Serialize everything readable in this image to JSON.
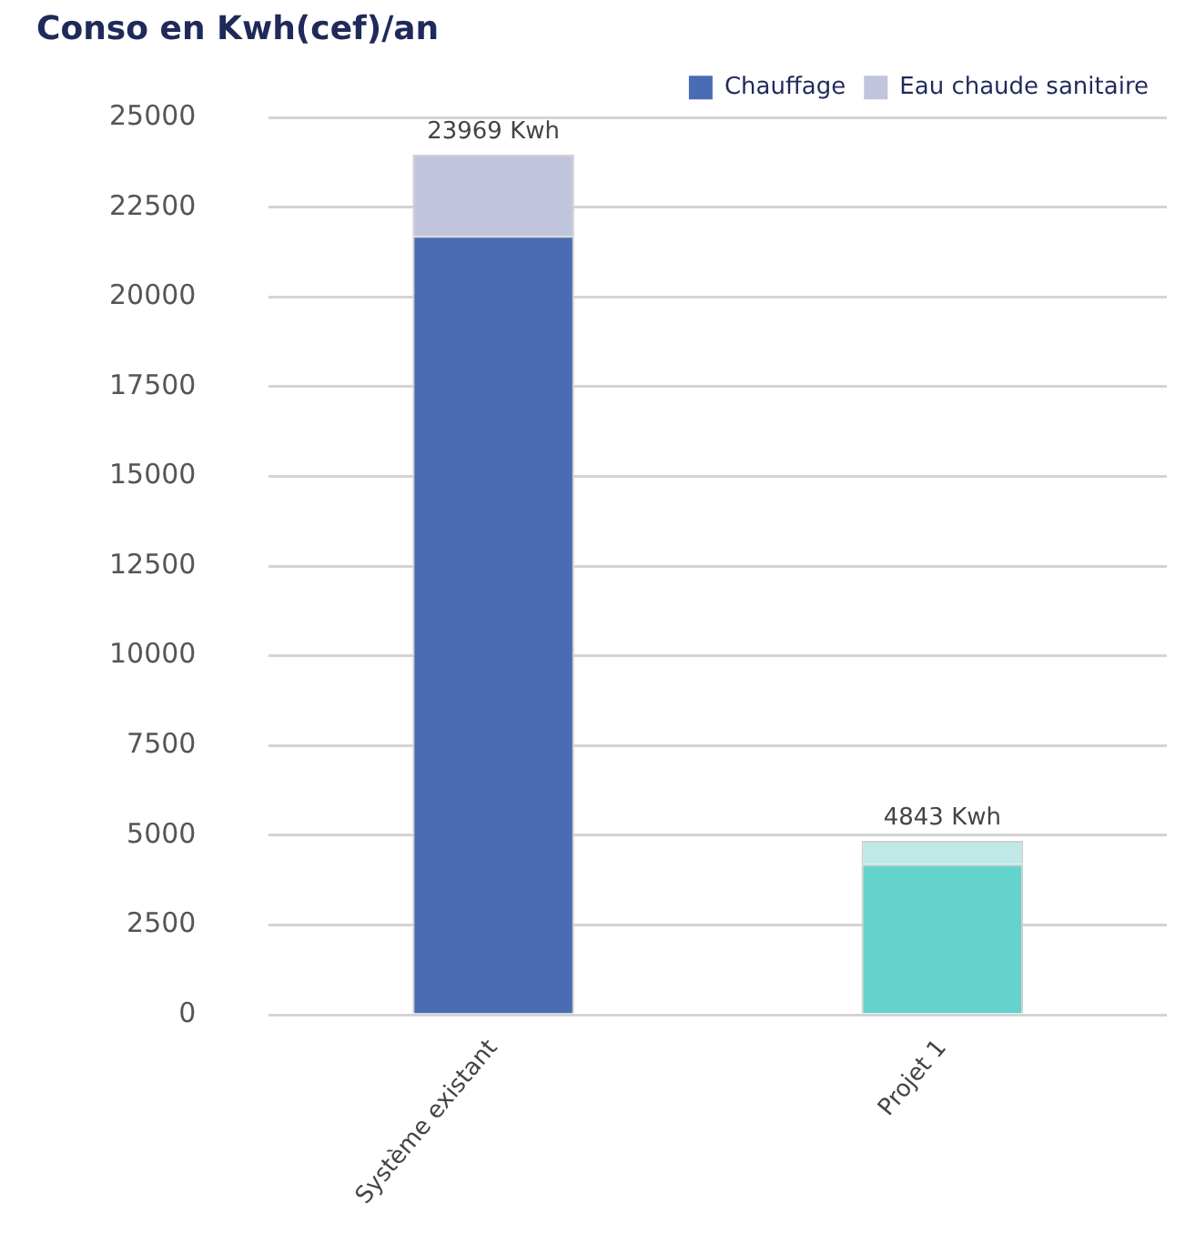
{
  "chart_data": {
    "type": "bar",
    "title": "Conso en Kwh(cef)/an",
    "categories": [
      "Système existant",
      "Projet 1"
    ],
    "stacked": true,
    "series": [
      {
        "name": "Chauffage",
        "color": "#4a6cb5",
        "colors": [
          "#4a6cb5",
          "#63d3cb"
        ],
        "values": [
          21700,
          4200
        ]
      },
      {
        "name": "Eau chaude sanitaire",
        "color": "#c0c4dc",
        "colors": [
          "#c0c4dc",
          "#bfe9e6"
        ],
        "values": [
          2269,
          643
        ]
      }
    ],
    "totals": [
      "23969 Kwh",
      "4843 Kwh"
    ],
    "ylim": [
      0,
      25000
    ],
    "yticks": [
      0,
      2500,
      5000,
      7500,
      10000,
      12500,
      15000,
      17500,
      20000,
      22500,
      25000
    ],
    "grid": "y",
    "legend": "top right"
  }
}
